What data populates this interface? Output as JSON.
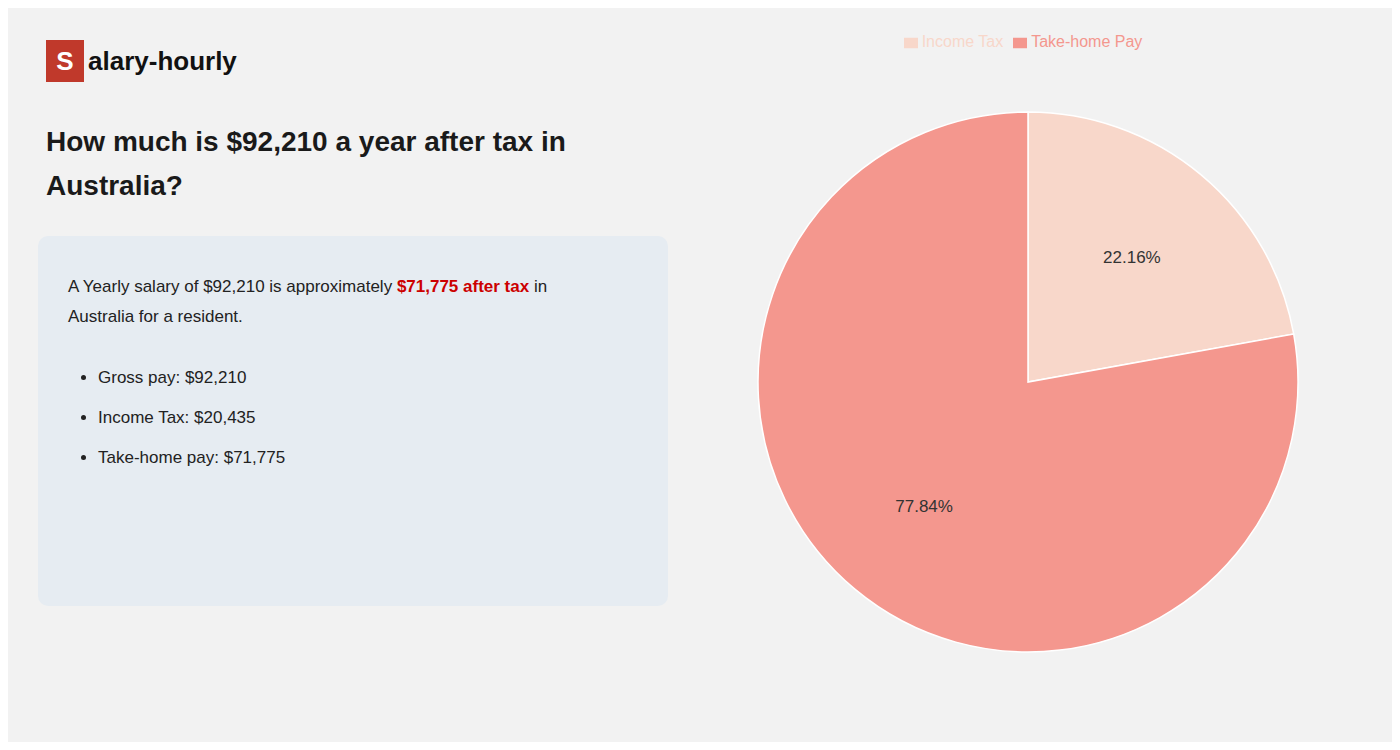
{
  "chart_data": {
    "type": "pie",
    "title": [
      "How much is $92,210 a year after tax in",
      "Australia?"
    ],
    "categories": [
      "Income Tax",
      "Take-home Pay"
    ],
    "values": [
      22.16,
      77.84
    ],
    "value_labels": [
      "22.16%",
      "77.84%"
    ],
    "colors": [
      "#f8d7ca",
      "#f4978e"
    ],
    "data_labels": true,
    "legend": "top",
    "annotations": [
      {
        "text": "S",
        "color": "#c0392b"
      },
      {
        "text": "alary-hourly"
      },
      {
        "text": "A Yearly salary of $92,210 is approximately "
      },
      {
        "text": "$71,775 after tax",
        "color": "#cc0000"
      },
      {
        "text": " in"
      },
      {
        "text": "Australia for a resident."
      },
      {
        "text": "Gross pay: $92,210"
      },
      {
        "text": "Income Tax: $20,435"
      },
      {
        "text": "Take-home pay: $71,775"
      }
    ]
  }
}
